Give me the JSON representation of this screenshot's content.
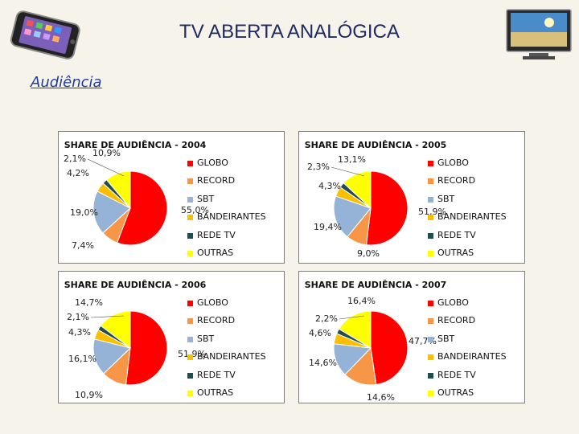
{
  "page": {
    "title": "TV ABERTA ANALÓGICA",
    "subtitle": "Audiência"
  },
  "icons": [
    "smartphone-icon",
    "flat-tv-icon"
  ],
  "colors": {
    "GLOBO": "#ff0000",
    "RECORD": "#f79646",
    "SBT": "#95b3d7",
    "BANDEIRANTES": "#fbbf00",
    "REDE TV": "#1f4e4e",
    "OUTRAS": "#ffff00"
  },
  "chart_data": [
    {
      "type": "pie",
      "title": "SHARE DE AUDIÊNCIA - 2004",
      "legend_position": "right",
      "categories": [
        "GLOBO",
        "RECORD",
        "SBT",
        "BANDEIRANTES",
        "REDE TV",
        "OUTRAS"
      ],
      "values": [
        55.0,
        7.4,
        19.0,
        4.2,
        2.1,
        10.9
      ],
      "value_labels": [
        "55,0%",
        "7,4%",
        "19,0%",
        "4,2%",
        "2,1%",
        "10,9%"
      ]
    },
    {
      "type": "pie",
      "title": "SHARE DE AUDIÊNCIA - 2005",
      "legend_position": "right",
      "categories": [
        "GLOBO",
        "RECORD",
        "SBT",
        "BANDEIRANTES",
        "REDE TV",
        "OUTRAS"
      ],
      "values": [
        51.9,
        9.0,
        19.4,
        4.3,
        2.3,
        13.1
      ],
      "value_labels": [
        "51,9%",
        "9,0%",
        "19,4%",
        "4,3%",
        "2,3%",
        "13,1%"
      ]
    },
    {
      "type": "pie",
      "title": "SHARE DE AUDIÊNCIA - 2006",
      "legend_position": "right",
      "categories": [
        "GLOBO",
        "RECORD",
        "SBT",
        "BANDEIRANTES",
        "REDE TV",
        "OUTRAS"
      ],
      "values": [
        51.9,
        10.9,
        16.1,
        4.3,
        2.1,
        14.7
      ],
      "value_labels": [
        "51,9%",
        "10,9%",
        "16,1%",
        "4,3%",
        "2,1%",
        "14,7%"
      ]
    },
    {
      "type": "pie",
      "title": "SHARE DE AUDIÊNCIA - 2007",
      "legend_position": "right",
      "categories": [
        "GLOBO",
        "RECORD",
        "SBT",
        "BANDEIRANTES",
        "REDE TV",
        "OUTRAS"
      ],
      "values": [
        47.7,
        14.6,
        14.6,
        4.6,
        2.2,
        16.4
      ],
      "value_labels": [
        "47,7%",
        "14,6%",
        "14,6%",
        "4,6%",
        "2,2%",
        "16,4%"
      ]
    }
  ]
}
